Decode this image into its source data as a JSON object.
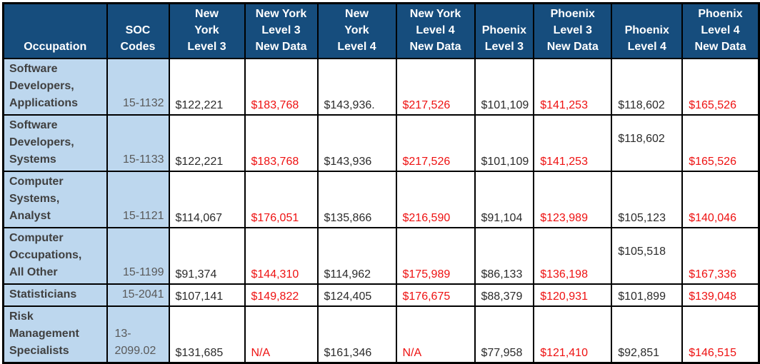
{
  "colors": {
    "header_background": "#164d7d",
    "header_text": "#ffffff",
    "occupation_cell_background": "#bdd7ee",
    "occupation_text": "#404040",
    "soc_code_text": "#595959",
    "value_text": "#2b2b2b",
    "new_data_value_text": "#ee1111",
    "grid_border": "#000000"
  },
  "table": {
    "columns": [
      {
        "id": "occupation",
        "label": "Occupation"
      },
      {
        "id": "soc-codes",
        "label": "SOC\nCodes"
      },
      {
        "id": "ny-l3",
        "label": "New\nYork\nLevel 3"
      },
      {
        "id": "ny-l3-new",
        "label": "New York\nLevel 3\nNew Data"
      },
      {
        "id": "ny-l4",
        "label": "New\nYork\nLevel 4"
      },
      {
        "id": "ny-l4-new",
        "label": "New York\nLevel 4\nNew Data"
      },
      {
        "id": "phx-l3",
        "label": "Phoenix\nLevel 3"
      },
      {
        "id": "phx-l3-new",
        "label": "Phoenix\nLevel 3\nNew Data"
      },
      {
        "id": "phx-l4",
        "label": "Phoenix\nLevel 4"
      },
      {
        "id": "phx-l4-new",
        "label": "Phoenix\nLevel 4\nNew Data"
      }
    ],
    "rows": [
      {
        "occupation": "Software\nDevelopers,\nApplications",
        "soc": "15-1132",
        "values": [
          "$122,221",
          "$183,768",
          "$143,936.",
          "$217,526",
          "$101,109",
          "$141,253",
          "$118,602",
          "$165,526"
        ]
      },
      {
        "occupation": "Software\nDevelopers,\nSystems",
        "soc": "15-1133",
        "values": [
          "$122,221",
          "$183,768",
          "$143,936",
          "$217,526",
          "$101,109",
          "$141,253",
          "$118,602",
          "$165,526"
        ]
      },
      {
        "occupation": "Computer\nSystems,\nAnalyst",
        "soc": "15-1121",
        "values": [
          "$114,067",
          "$176,051",
          "$135,866",
          "$216,590",
          "$91,104",
          "$123,989",
          "$105,123",
          "$140,046"
        ]
      },
      {
        "occupation": "Computer\nOccupations,\nAll Other",
        "soc": "15-1199",
        "values": [
          "$91,374",
          "$144,310",
          "$114,962",
          "$175,989",
          "$86,133",
          "$136,198",
          "$105,518",
          "$167,336"
        ]
      },
      {
        "occupation": "Statisticians",
        "soc": "15-2041",
        "values": [
          "$107,141",
          "$149,822",
          "$124,405",
          "$176,675",
          "$88,379",
          "$120,931",
          "$101,899",
          "$139,048"
        ]
      },
      {
        "occupation": "Risk\nManagement\nSpecialists",
        "soc": "13-\n2099.02",
        "values": [
          "$131,685",
          "N/A",
          "$161,346",
          "N/A",
          "$77,958",
          "$121,410",
          "$92,851",
          "$146,515"
        ]
      }
    ]
  }
}
